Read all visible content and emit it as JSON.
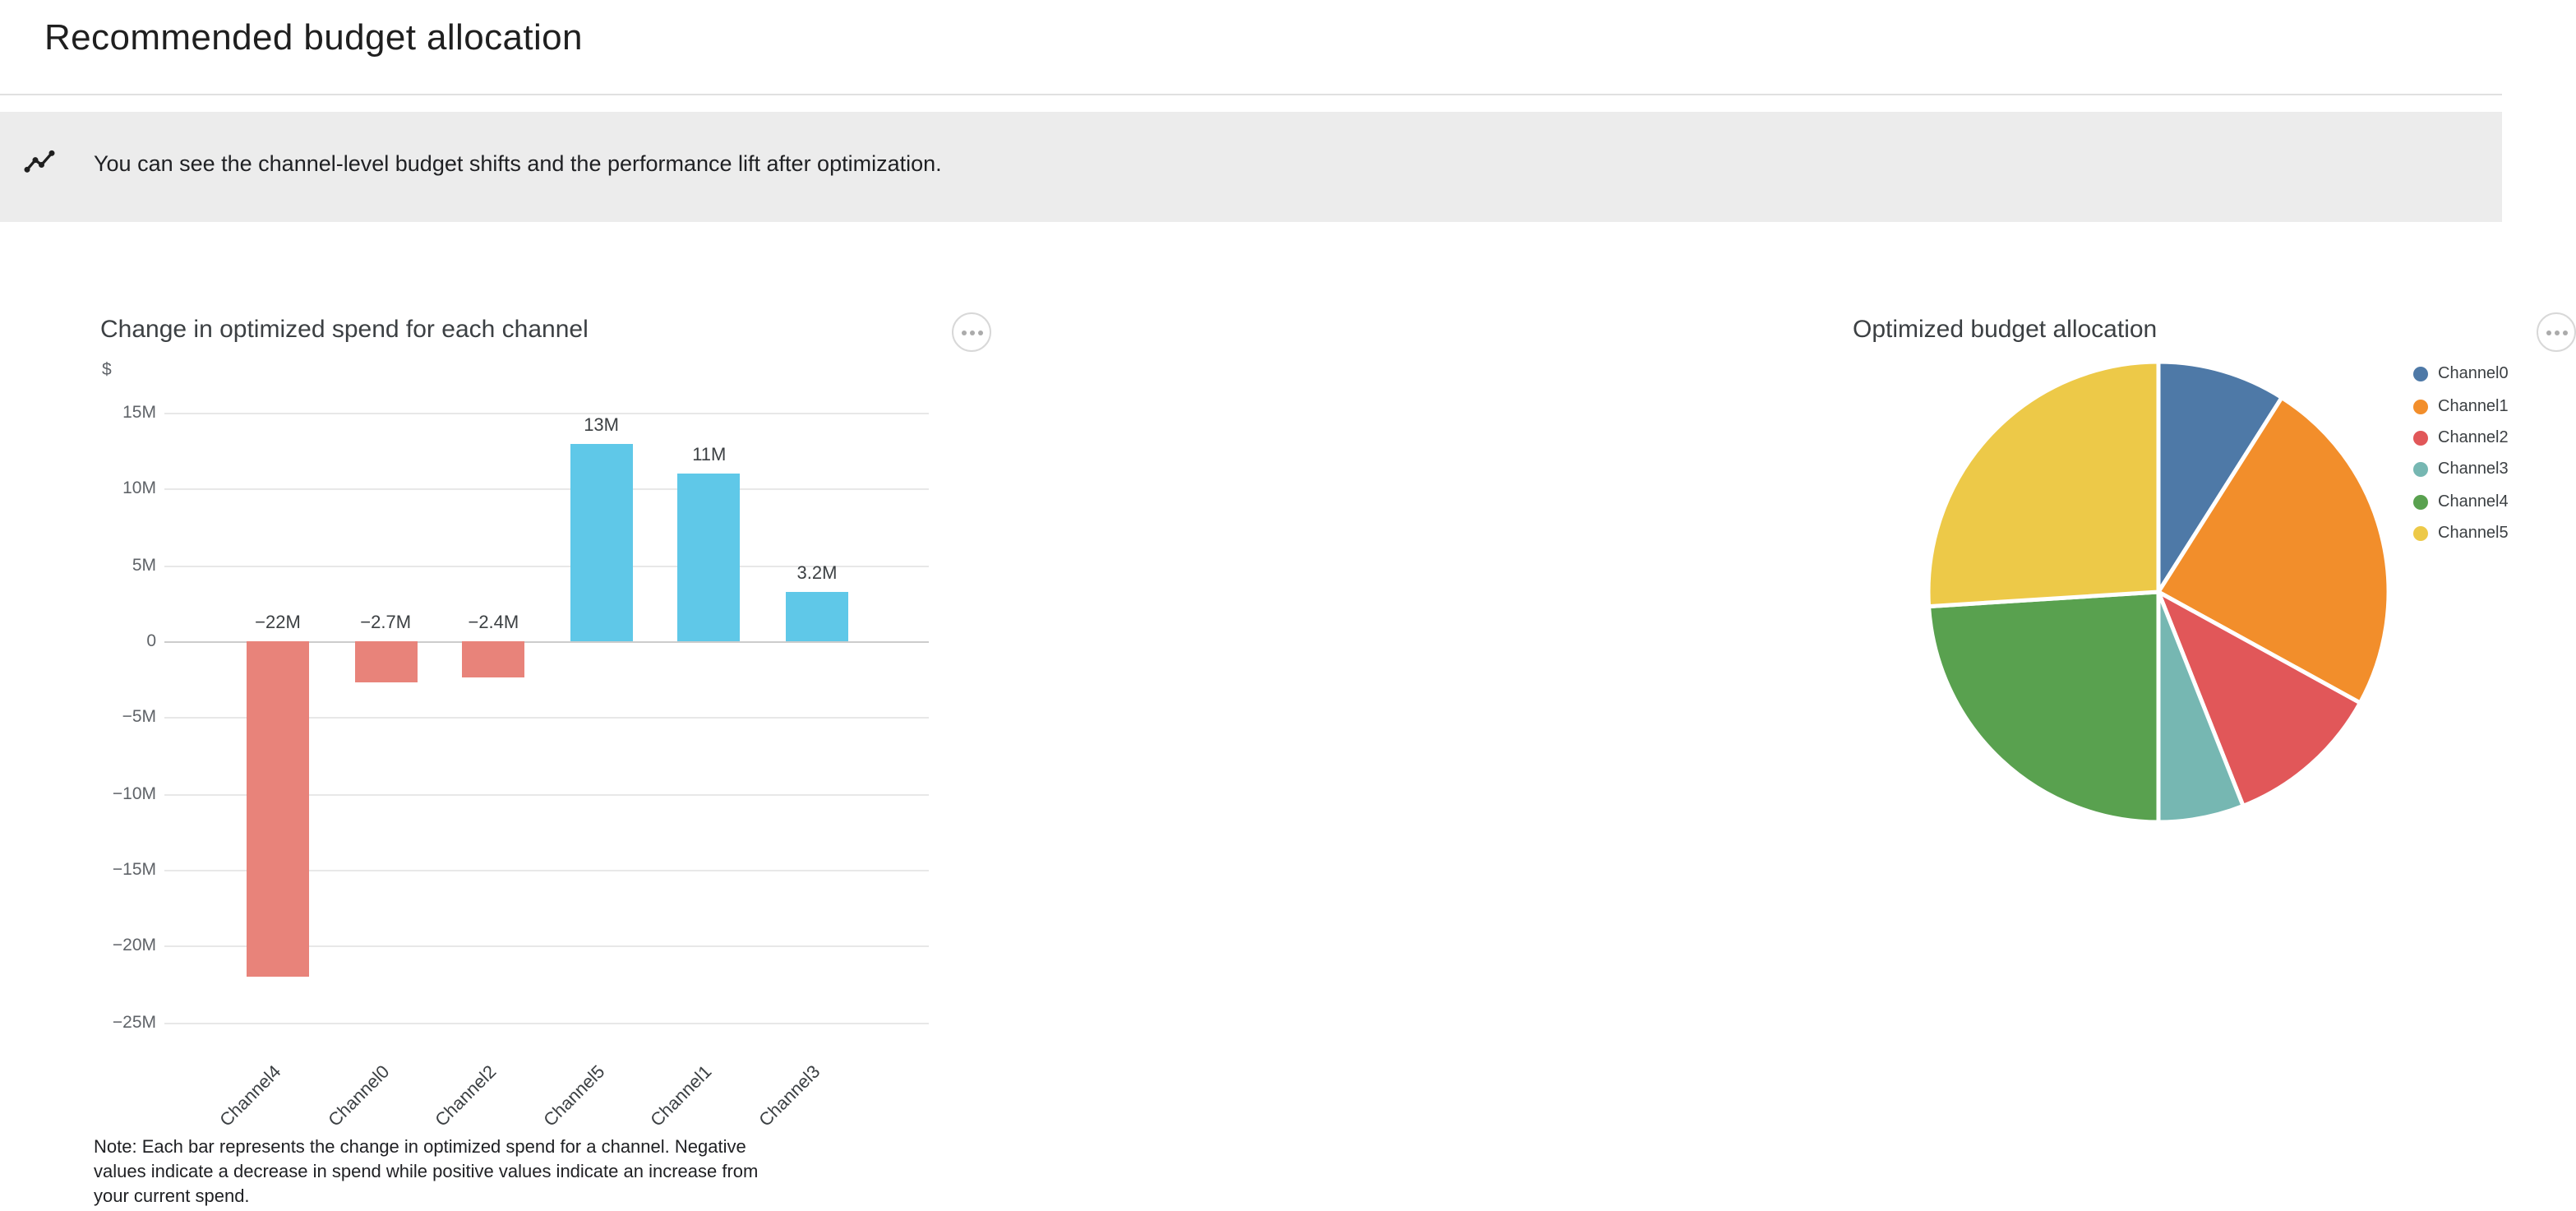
{
  "header": {
    "title": "Recommended budget allocation"
  },
  "banner": {
    "icon": "insights-icon",
    "text": "You can see the channel-level budget shifts and the performance lift after optimization.",
    "background_color": "#ececec"
  },
  "chart_data": [
    {
      "type": "bar",
      "title": "Change in optimized spend for each channel",
      "ylabel": "$",
      "unit": "M",
      "categories": [
        "Channel4",
        "Channel0",
        "Channel2",
        "Channel5",
        "Channel1",
        "Channel3"
      ],
      "values": [
        -22,
        -2.7,
        -2.4,
        13,
        11,
        3.2
      ],
      "value_labels": [
        "−22M",
        "−2.7M",
        "−2.4M",
        "13M",
        "11M",
        "3.2M"
      ],
      "yticks": [
        15,
        10,
        5,
        0,
        -5,
        -10,
        -15,
        -20,
        -25
      ],
      "ytick_labels": [
        "15M",
        "10M",
        "5M",
        "0",
        "−5M",
        "−10M",
        "−15M",
        "−20M",
        "−25M"
      ],
      "ylim": [
        15,
        -25
      ],
      "grid": true,
      "negative_color": "#e8837a",
      "positive_color": "#5fc8e8",
      "note": "Note: Each bar represents the change in optimized spend for a channel. Negative values indicate a decrease in spend while positive values indicate an increase from your current spend."
    },
    {
      "type": "pie",
      "title": "Optimized budget allocation",
      "legend_position": "right",
      "slices": [
        {
          "label": "Channel0",
          "value": 9,
          "color": "#4e79a7"
        },
        {
          "label": "Channel1",
          "value": 24,
          "color": "#f28e2b"
        },
        {
          "label": "Channel2",
          "value": 11,
          "color": "#e15759"
        },
        {
          "label": "Channel3",
          "value": 6,
          "color": "#76b7b2"
        },
        {
          "label": "Channel4",
          "value": 24,
          "color": "#59a14f"
        },
        {
          "label": "Channel5",
          "value": 26,
          "color": "#edc948"
        }
      ]
    }
  ]
}
